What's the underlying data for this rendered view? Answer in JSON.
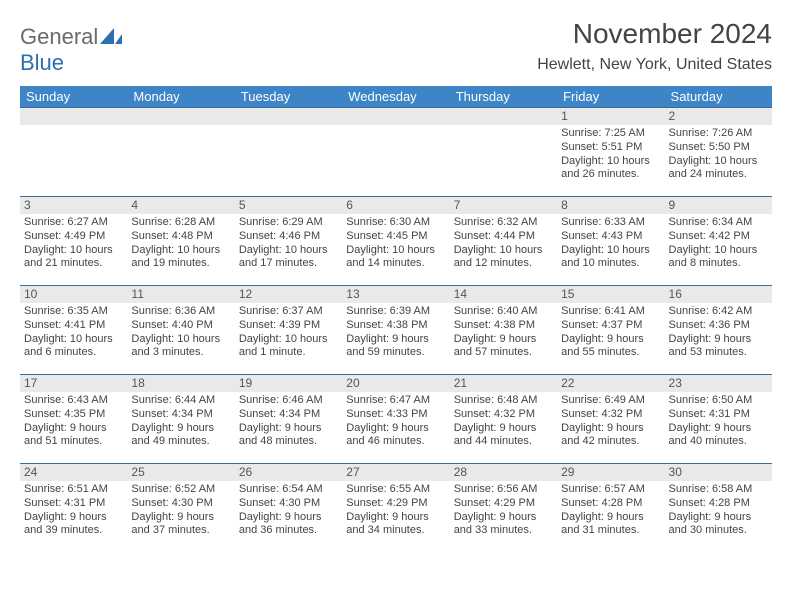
{
  "brand": {
    "part1": "General",
    "part2": "Blue"
  },
  "title": "November 2024",
  "location": "Hewlett, New York, United States",
  "colors": {
    "header_bg": "#3d85c6",
    "header_text": "#ffffff",
    "row_border": "#3d6a9a",
    "daynum_bg": "#e9e9e9",
    "text": "#444444",
    "brand_gray": "#6a6a6a",
    "brand_blue": "#2f6fb0"
  },
  "dow": [
    "Sunday",
    "Monday",
    "Tuesday",
    "Wednesday",
    "Thursday",
    "Friday",
    "Saturday"
  ],
  "weeks": [
    [
      {
        "n": "",
        "sunrise": "",
        "sunset": "",
        "daylight1": "",
        "daylight2": ""
      },
      {
        "n": "",
        "sunrise": "",
        "sunset": "",
        "daylight1": "",
        "daylight2": ""
      },
      {
        "n": "",
        "sunrise": "",
        "sunset": "",
        "daylight1": "",
        "daylight2": ""
      },
      {
        "n": "",
        "sunrise": "",
        "sunset": "",
        "daylight1": "",
        "daylight2": ""
      },
      {
        "n": "",
        "sunrise": "",
        "sunset": "",
        "daylight1": "",
        "daylight2": ""
      },
      {
        "n": "1",
        "sunrise": "Sunrise: 7:25 AM",
        "sunset": "Sunset: 5:51 PM",
        "daylight1": "Daylight: 10 hours",
        "daylight2": "and 26 minutes."
      },
      {
        "n": "2",
        "sunrise": "Sunrise: 7:26 AM",
        "sunset": "Sunset: 5:50 PM",
        "daylight1": "Daylight: 10 hours",
        "daylight2": "and 24 minutes."
      }
    ],
    [
      {
        "n": "3",
        "sunrise": "Sunrise: 6:27 AM",
        "sunset": "Sunset: 4:49 PM",
        "daylight1": "Daylight: 10 hours",
        "daylight2": "and 21 minutes."
      },
      {
        "n": "4",
        "sunrise": "Sunrise: 6:28 AM",
        "sunset": "Sunset: 4:48 PM",
        "daylight1": "Daylight: 10 hours",
        "daylight2": "and 19 minutes."
      },
      {
        "n": "5",
        "sunrise": "Sunrise: 6:29 AM",
        "sunset": "Sunset: 4:46 PM",
        "daylight1": "Daylight: 10 hours",
        "daylight2": "and 17 minutes."
      },
      {
        "n": "6",
        "sunrise": "Sunrise: 6:30 AM",
        "sunset": "Sunset: 4:45 PM",
        "daylight1": "Daylight: 10 hours",
        "daylight2": "and 14 minutes."
      },
      {
        "n": "7",
        "sunrise": "Sunrise: 6:32 AM",
        "sunset": "Sunset: 4:44 PM",
        "daylight1": "Daylight: 10 hours",
        "daylight2": "and 12 minutes."
      },
      {
        "n": "8",
        "sunrise": "Sunrise: 6:33 AM",
        "sunset": "Sunset: 4:43 PM",
        "daylight1": "Daylight: 10 hours",
        "daylight2": "and 10 minutes."
      },
      {
        "n": "9",
        "sunrise": "Sunrise: 6:34 AM",
        "sunset": "Sunset: 4:42 PM",
        "daylight1": "Daylight: 10 hours",
        "daylight2": "and 8 minutes."
      }
    ],
    [
      {
        "n": "10",
        "sunrise": "Sunrise: 6:35 AM",
        "sunset": "Sunset: 4:41 PM",
        "daylight1": "Daylight: 10 hours",
        "daylight2": "and 6 minutes."
      },
      {
        "n": "11",
        "sunrise": "Sunrise: 6:36 AM",
        "sunset": "Sunset: 4:40 PM",
        "daylight1": "Daylight: 10 hours",
        "daylight2": "and 3 minutes."
      },
      {
        "n": "12",
        "sunrise": "Sunrise: 6:37 AM",
        "sunset": "Sunset: 4:39 PM",
        "daylight1": "Daylight: 10 hours",
        "daylight2": "and 1 minute."
      },
      {
        "n": "13",
        "sunrise": "Sunrise: 6:39 AM",
        "sunset": "Sunset: 4:38 PM",
        "daylight1": "Daylight: 9 hours",
        "daylight2": "and 59 minutes."
      },
      {
        "n": "14",
        "sunrise": "Sunrise: 6:40 AM",
        "sunset": "Sunset: 4:38 PM",
        "daylight1": "Daylight: 9 hours",
        "daylight2": "and 57 minutes."
      },
      {
        "n": "15",
        "sunrise": "Sunrise: 6:41 AM",
        "sunset": "Sunset: 4:37 PM",
        "daylight1": "Daylight: 9 hours",
        "daylight2": "and 55 minutes."
      },
      {
        "n": "16",
        "sunrise": "Sunrise: 6:42 AM",
        "sunset": "Sunset: 4:36 PM",
        "daylight1": "Daylight: 9 hours",
        "daylight2": "and 53 minutes."
      }
    ],
    [
      {
        "n": "17",
        "sunrise": "Sunrise: 6:43 AM",
        "sunset": "Sunset: 4:35 PM",
        "daylight1": "Daylight: 9 hours",
        "daylight2": "and 51 minutes."
      },
      {
        "n": "18",
        "sunrise": "Sunrise: 6:44 AM",
        "sunset": "Sunset: 4:34 PM",
        "daylight1": "Daylight: 9 hours",
        "daylight2": "and 49 minutes."
      },
      {
        "n": "19",
        "sunrise": "Sunrise: 6:46 AM",
        "sunset": "Sunset: 4:34 PM",
        "daylight1": "Daylight: 9 hours",
        "daylight2": "and 48 minutes."
      },
      {
        "n": "20",
        "sunrise": "Sunrise: 6:47 AM",
        "sunset": "Sunset: 4:33 PM",
        "daylight1": "Daylight: 9 hours",
        "daylight2": "and 46 minutes."
      },
      {
        "n": "21",
        "sunrise": "Sunrise: 6:48 AM",
        "sunset": "Sunset: 4:32 PM",
        "daylight1": "Daylight: 9 hours",
        "daylight2": "and 44 minutes."
      },
      {
        "n": "22",
        "sunrise": "Sunrise: 6:49 AM",
        "sunset": "Sunset: 4:32 PM",
        "daylight1": "Daylight: 9 hours",
        "daylight2": "and 42 minutes."
      },
      {
        "n": "23",
        "sunrise": "Sunrise: 6:50 AM",
        "sunset": "Sunset: 4:31 PM",
        "daylight1": "Daylight: 9 hours",
        "daylight2": "and 40 minutes."
      }
    ],
    [
      {
        "n": "24",
        "sunrise": "Sunrise: 6:51 AM",
        "sunset": "Sunset: 4:31 PM",
        "daylight1": "Daylight: 9 hours",
        "daylight2": "and 39 minutes."
      },
      {
        "n": "25",
        "sunrise": "Sunrise: 6:52 AM",
        "sunset": "Sunset: 4:30 PM",
        "daylight1": "Daylight: 9 hours",
        "daylight2": "and 37 minutes."
      },
      {
        "n": "26",
        "sunrise": "Sunrise: 6:54 AM",
        "sunset": "Sunset: 4:30 PM",
        "daylight1": "Daylight: 9 hours",
        "daylight2": "and 36 minutes."
      },
      {
        "n": "27",
        "sunrise": "Sunrise: 6:55 AM",
        "sunset": "Sunset: 4:29 PM",
        "daylight1": "Daylight: 9 hours",
        "daylight2": "and 34 minutes."
      },
      {
        "n": "28",
        "sunrise": "Sunrise: 6:56 AM",
        "sunset": "Sunset: 4:29 PM",
        "daylight1": "Daylight: 9 hours",
        "daylight2": "and 33 minutes."
      },
      {
        "n": "29",
        "sunrise": "Sunrise: 6:57 AM",
        "sunset": "Sunset: 4:28 PM",
        "daylight1": "Daylight: 9 hours",
        "daylight2": "and 31 minutes."
      },
      {
        "n": "30",
        "sunrise": "Sunrise: 6:58 AM",
        "sunset": "Sunset: 4:28 PM",
        "daylight1": "Daylight: 9 hours",
        "daylight2": "and 30 minutes."
      }
    ]
  ]
}
